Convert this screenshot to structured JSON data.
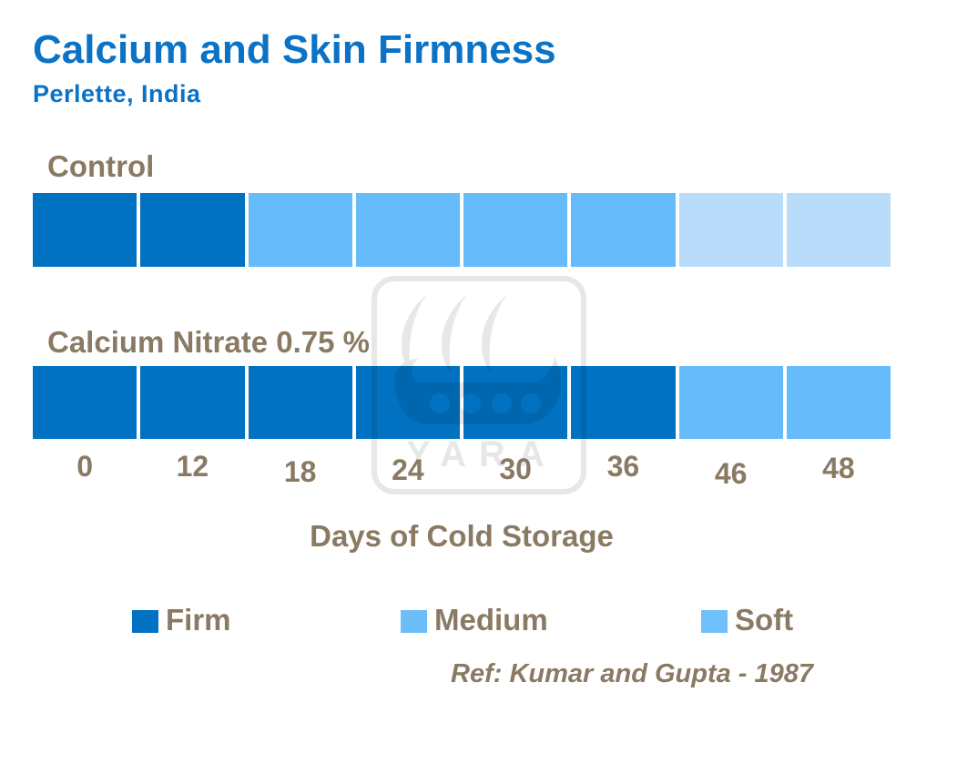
{
  "chart_data": {
    "type": "heatmap",
    "title": "Calcium and Skin Firmness",
    "subtitle": "Perlette, India",
    "categories": [
      "0",
      "12",
      "18",
      "24",
      "30",
      "36",
      "46",
      "48"
    ],
    "xlabel": "Days of Cold Storage",
    "rows": [
      {
        "name": "Control",
        "values": [
          "Firm",
          "Firm",
          "Medium",
          "Medium",
          "Medium",
          "Medium",
          "Soft",
          "Soft"
        ]
      },
      {
        "name": "Calcium Nitrate 0.75 %",
        "values": [
          "Firm",
          "Firm",
          "Firm",
          "Firm",
          "Firm",
          "Firm",
          "Medium",
          "Medium"
        ]
      }
    ],
    "value_colors": {
      "Firm": "#0072C1",
      "Medium": "#66BBFA",
      "Soft": "#B9DCFB"
    },
    "legend": [
      {
        "label": "Firm",
        "color": "#0072C1"
      },
      {
        "label": "Medium",
        "color": "#6CBEFA"
      },
      {
        "label": "Soft",
        "color": "#6FC0FB"
      }
    ],
    "legend_position": "bottom",
    "grid": false,
    "title_color": "#0B72C5",
    "text_color": "#8A7A63",
    "reference": "Ref: Kumar and Gupta - 1987",
    "watermark_text": "YARA"
  }
}
